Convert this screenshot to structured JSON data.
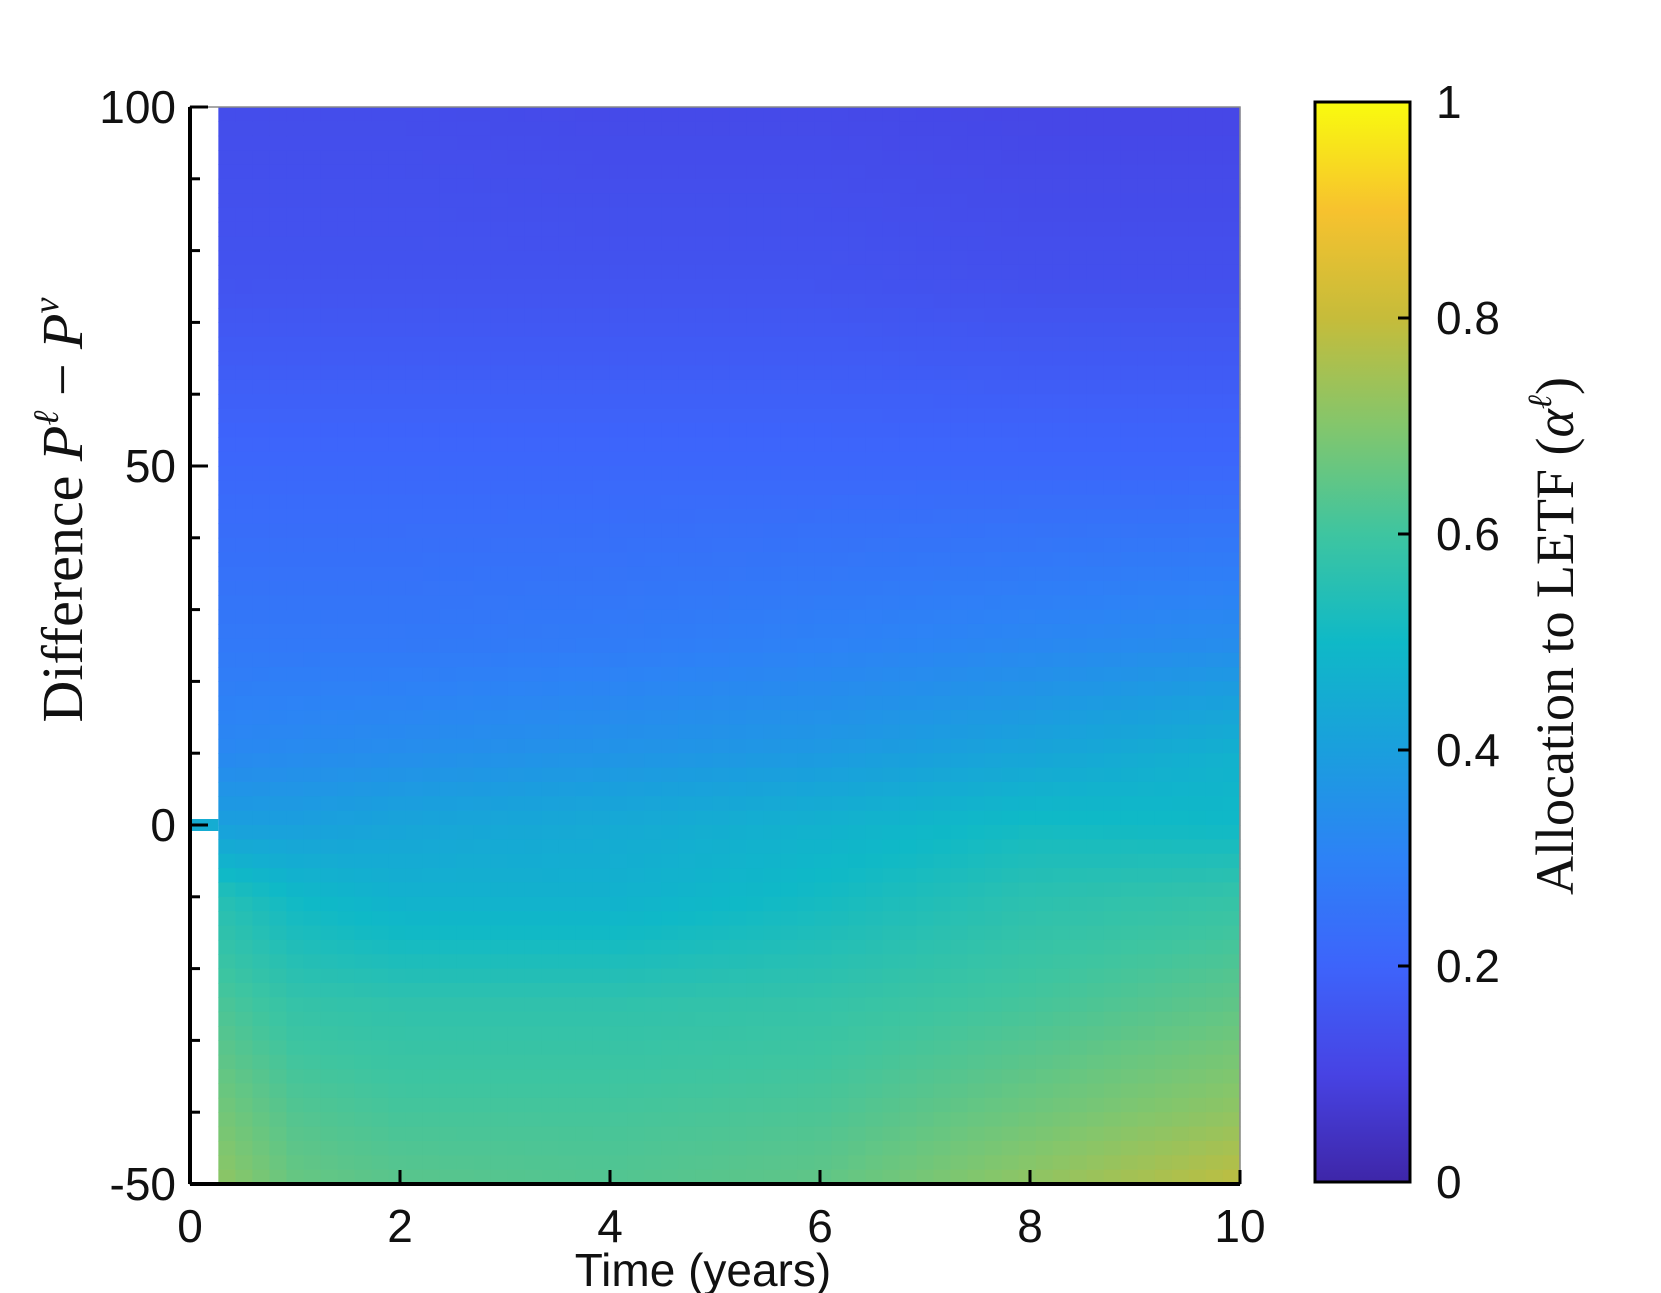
{
  "chart_data": {
    "type": "heatmap",
    "xlabel": "Time (years)",
    "ylabel": "Difference P^ℓ − P^v",
    "ylabel_parts": {
      "prefix": "Difference ",
      "p1": "P",
      "sup1": "ℓ",
      "minus": " − ",
      "p2": "P",
      "sup2": "v"
    },
    "colorbar_label": "Allocation to LETF (α^ℓ)",
    "colorbar_label_parts": {
      "main": "Allocation to LETF (",
      "alpha": "α",
      "sup": "ℓ",
      "close": ")"
    },
    "xlim": [
      0,
      10
    ],
    "ylim": [
      -50,
      100
    ],
    "clim": [
      0,
      1
    ],
    "x_ticks": [
      0,
      2,
      4,
      6,
      8,
      10
    ],
    "x_tick_labels": [
      "0",
      "2",
      "4",
      "6",
      "8",
      "10"
    ],
    "y_ticks": [
      -50,
      0,
      50,
      100
    ],
    "y_tick_labels": [
      "-50",
      "0",
      "50",
      "100"
    ],
    "colorbar_ticks": [
      0,
      0.2,
      0.4,
      0.6,
      0.8,
      1
    ],
    "colorbar_tick_labels": [
      "0",
      "0.2",
      "0.4",
      "0.6",
      "0.8",
      "1"
    ],
    "colormap": "parula",
    "parula_stops": [
      [
        0.0,
        "#3e26a8"
      ],
      [
        0.1,
        "#4743e4"
      ],
      [
        0.2,
        "#3d64fb"
      ],
      [
        0.3,
        "#2d82f6"
      ],
      [
        0.4,
        "#1a9fdd"
      ],
      [
        0.5,
        "#0fb9c7"
      ],
      [
        0.6,
        "#3ec5a0"
      ],
      [
        0.7,
        "#83c66c"
      ],
      [
        0.8,
        "#c6bc3a"
      ],
      [
        0.9,
        "#f7c22e"
      ],
      [
        1.0,
        "#f9fb0e"
      ]
    ],
    "data_starts_at_x": 0.27,
    "initial_point": {
      "x": 0,
      "y": 0,
      "value": 0.45
    },
    "grid": false,
    "time_samples": [
      0.27,
      1,
      2,
      4,
      6,
      8,
      10
    ],
    "diff_samples": [
      100,
      75,
      50,
      25,
      10,
      0,
      -10,
      -25,
      -40,
      -50
    ],
    "z": [
      [
        0.13,
        0.13,
        0.13,
        0.12,
        0.12,
        0.11,
        0.11
      ],
      [
        0.15,
        0.15,
        0.15,
        0.15,
        0.15,
        0.14,
        0.14
      ],
      [
        0.21,
        0.21,
        0.21,
        0.21,
        0.21,
        0.21,
        0.21
      ],
      [
        0.27,
        0.27,
        0.27,
        0.28,
        0.3,
        0.32,
        0.34
      ],
      [
        0.32,
        0.33,
        0.34,
        0.36,
        0.38,
        0.42,
        0.47
      ],
      [
        0.4,
        0.4,
        0.42,
        0.44,
        0.47,
        0.51,
        0.5
      ],
      [
        0.55,
        0.5,
        0.47,
        0.47,
        0.51,
        0.56,
        0.58
      ],
      [
        0.62,
        0.58,
        0.57,
        0.57,
        0.58,
        0.61,
        0.65
      ],
      [
        0.68,
        0.63,
        0.61,
        0.61,
        0.62,
        0.67,
        0.72
      ],
      [
        0.72,
        0.66,
        0.64,
        0.63,
        0.65,
        0.72,
        0.79
      ]
    ]
  }
}
